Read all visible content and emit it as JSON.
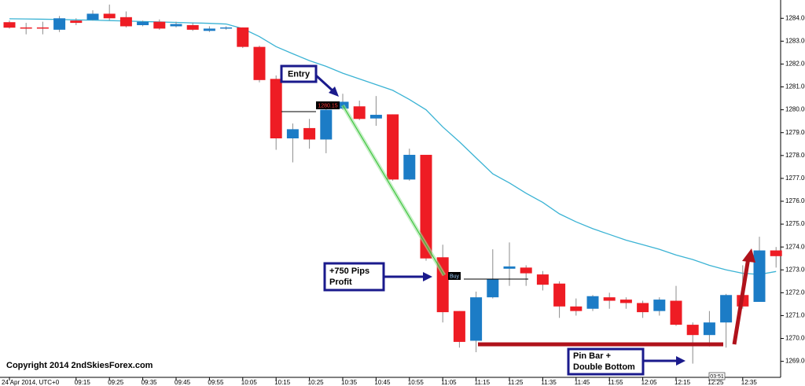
{
  "chart_data": {
    "type": "candlestick",
    "categories": [
      "24 Apr 2014, UTC+0",
      null,
      null,
      null,
      "09:15",
      null,
      "09:25",
      null,
      "09:35",
      null,
      "09:45",
      null,
      "09:55",
      null,
      "10:05",
      null,
      "10:15",
      null,
      "10:25",
      null,
      "10:35",
      null,
      "10:45",
      null,
      "10:55",
      null,
      "11:05",
      null,
      "11:15",
      null,
      "11:25",
      null,
      "11:35",
      null,
      "11:45",
      null,
      "11:55",
      null,
      "12:05",
      null,
      "12:15",
      null,
      "12:25",
      null,
      "12:35",
      null,
      null
    ],
    "open": [
      1283.83,
      1283.6,
      1283.6,
      1283.5,
      1283.9,
      1283.93,
      1284.2,
      1284.05,
      1283.7,
      1283.85,
      1283.65,
      1283.7,
      1283.45,
      1283.55,
      1283.6,
      1282.75,
      1281.35,
      1278.75,
      1279.2,
      1278.7,
      1280.05,
      1280.15,
      1279.62,
      1279.8,
      1276.95,
      1278.03,
      1273.55,
      1271.2,
      1269.9,
      1271.8,
      1273.05,
      1273.1,
      1272.8,
      1272.4,
      1271.4,
      1271.3,
      1271.8,
      1271.7,
      1271.55,
      1271.2,
      1271.65,
      1270.6,
      1270.15,
      1270.7,
      1271.9,
      1271.6,
      1273.85
    ],
    "high": [
      1283.9,
      1283.8,
      1283.85,
      1284.1,
      1284.0,
      1284.35,
      1284.6,
      1284.3,
      1283.9,
      1283.95,
      1283.85,
      1283.8,
      1283.65,
      1283.65,
      1283.6,
      1282.8,
      1281.5,
      1279.4,
      1279.6,
      1280.35,
      1280.7,
      1280.4,
      1280.6,
      1279.8,
      1278.3,
      1278.03,
      1274.1,
      1271.2,
      1272.05,
      1273.9,
      1274.2,
      1273.2,
      1272.95,
      1272.5,
      1271.75,
      1271.9,
      1272.0,
      1271.8,
      1271.65,
      1271.8,
      1272.3,
      1270.7,
      1271.2,
      1271.95,
      1273.2,
      1274.45,
      1274.0
    ],
    "low": [
      1283.55,
      1283.3,
      1283.3,
      1283.4,
      1283.7,
      1283.9,
      1283.9,
      1283.6,
      1283.65,
      1283.5,
      1283.6,
      1283.45,
      1283.4,
      1283.5,
      1282.7,
      1281.2,
      1278.25,
      1277.7,
      1278.3,
      1278.1,
      1280.0,
      1279.55,
      1279.3,
      1276.9,
      1276.9,
      1273.4,
      1270.7,
      1269.6,
      1269.4,
      1271.75,
      1272.3,
      1272.3,
      1272.1,
      1270.9,
      1271.0,
      1271.2,
      1271.3,
      1271.3,
      1270.9,
      1271.0,
      1270.55,
      1268.9,
      1269.65,
      1269.6,
      1271.3,
      1271.6,
      1273.1
    ],
    "close": [
      1283.59,
      1283.55,
      1283.55,
      1284.0,
      1283.8,
      1284.2,
      1284.0,
      1283.65,
      1283.85,
      1283.55,
      1283.75,
      1283.5,
      1283.55,
      1283.6,
      1282.75,
      1281.3,
      1278.75,
      1279.15,
      1278.7,
      1280.0,
      1280.35,
      1279.6,
      1279.78,
      1276.95,
      1278.03,
      1273.5,
      1271.15,
      1269.85,
      1271.8,
      1272.6,
      1273.15,
      1272.85,
      1272.35,
      1271.4,
      1271.2,
      1271.85,
      1271.65,
      1271.55,
      1271.15,
      1271.7,
      1270.6,
      1270.15,
      1270.7,
      1271.9,
      1271.4,
      1273.85,
      1273.6
    ],
    "up_color": "#1c7cc6",
    "down_color": "#ee1c24",
    "wick_color": "#8c8c8c",
    "moving_average": {
      "color": "#3bb3d4",
      "values": [
        1283.98,
        1283.97,
        1283.96,
        1283.95,
        1283.93,
        1283.92,
        1283.9,
        1283.88,
        1283.86,
        1283.84,
        1283.82,
        1283.8,
        1283.78,
        1283.75,
        1283.55,
        1283.2,
        1282.76,
        1282.45,
        1282.15,
        1281.9,
        1281.6,
        1281.35,
        1281.1,
        1280.85,
        1280.45,
        1280.0,
        1279.25,
        1278.6,
        1277.9,
        1277.2,
        1276.8,
        1276.35,
        1275.95,
        1275.45,
        1275.1,
        1274.8,
        1274.55,
        1274.3,
        1274.1,
        1273.9,
        1273.65,
        1273.45,
        1273.2,
        1273.0,
        1272.85,
        1272.8,
        1272.93
      ]
    },
    "ylim": [
      1268.3,
      1284.8
    ],
    "yticks": [
      {
        "value": 1269,
        "label": "1269.00"
      },
      {
        "value": 1270,
        "label": "1270.00"
      },
      {
        "value": 1271,
        "label": "1271.00"
      },
      {
        "value": 1272,
        "label": "1272.00"
      },
      {
        "value": 1273,
        "label": "1273.00"
      },
      {
        "value": 1274,
        "label": "1274.00"
      },
      {
        "value": 1275,
        "label": "1275.00"
      },
      {
        "value": 1276,
        "label": "1276.00"
      },
      {
        "value": 1277,
        "label": "1277.00"
      },
      {
        "value": 1278,
        "label": "1278.00"
      },
      {
        "value": 1279,
        "label": "1279.00"
      },
      {
        "value": 1280,
        "label": "1280.00"
      },
      {
        "value": 1281,
        "label": "1281.00"
      },
      {
        "value": 1282,
        "label": "1282.00"
      },
      {
        "value": 1283,
        "label": "1283.00"
      },
      {
        "value": 1284,
        "label": "1284.00"
      }
    ]
  },
  "annotations": [
    "Entry",
    "+750 Pips",
    "Profit",
    "Pin Bar +",
    "Double Bottom"
  ],
  "tags": [
    "1280.15",
    "Buy",
    "03:51"
  ],
  "copyright": "Copyright 2014 2ndSkiesForex.com"
}
